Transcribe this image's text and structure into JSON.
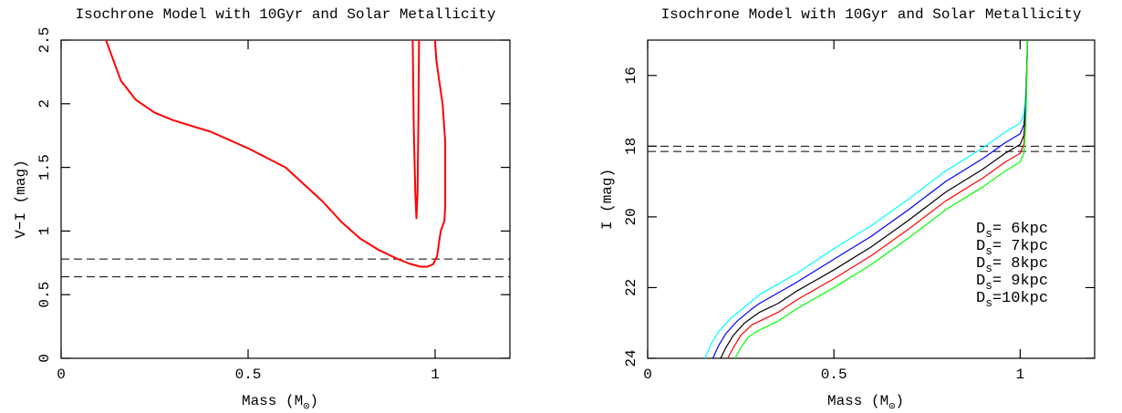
{
  "chart_data": [
    {
      "type": "line",
      "title": "Isochrone Model with 10Gyr and Solar Metallicity",
      "x_label": "Mass (M⊙)",
      "y_label": "V−I (mag)",
      "xlim": [
        0,
        1.2
      ],
      "xticks": [
        0,
        0.5,
        1
      ],
      "ylim": [
        0,
        2.5
      ],
      "yticks": [
        0,
        0.5,
        1,
        1.5,
        2,
        2.5
      ],
      "hlines": [
        0.78,
        0.64
      ],
      "hline_style": "dashed",
      "series": [
        {
          "color": "#ff0000",
          "x": [
            0.12,
            0.145,
            0.16,
            0.2,
            0.25,
            0.3,
            0.4,
            0.5,
            0.6,
            0.7,
            0.75,
            0.8,
            0.85,
            0.9,
            0.93,
            0.96,
            0.98,
            0.995,
            1.005,
            1.015,
            1.025,
            1.027,
            1.027,
            1.02,
            1.01,
            1.003,
            1.0,
            null,
            0.94,
            0.943,
            0.947,
            0.95,
            0.953,
            0.955,
            0.957
          ],
          "values": [
            2.5,
            2.3,
            2.18,
            2.03,
            1.93,
            1.87,
            1.78,
            1.65,
            1.5,
            1.23,
            1.07,
            0.94,
            0.85,
            0.78,
            0.745,
            0.72,
            0.72,
            0.74,
            0.8,
            1.0,
            1.08,
            1.2,
            1.7,
            2.0,
            2.2,
            2.35,
            2.5,
            null,
            2.5,
            1.8,
            1.3,
            1.1,
            1.3,
            1.8,
            2.5
          ]
        }
      ]
    },
    {
      "type": "line",
      "title": "Isochrone Model with 10Gyr and Solar Metallicity",
      "x_label": "Mass (M⊙)",
      "y_label": "I (mag)",
      "xlim": [
        0,
        1.2
      ],
      "xticks": [
        0,
        0.5,
        1
      ],
      "ylim": [
        24,
        15
      ],
      "yticks": [
        16,
        18,
        20,
        22,
        24
      ],
      "hlines": [
        18.0,
        18.15
      ],
      "hline_style": "dashed",
      "legend": "right",
      "series": [
        {
          "name": "Ds= 6kpc",
          "color": "#00ffff",
          "x": [
            0.154,
            0.17,
            0.19,
            0.22,
            0.26,
            0.3,
            0.35,
            0.4,
            0.5,
            0.6,
            0.7,
            0.8,
            0.9,
            0.96,
            1.0,
            1.01,
            1.015,
            1.02
          ],
          "values": [
            24,
            23.6,
            23.25,
            22.9,
            22.55,
            22.2,
            21.9,
            21.6,
            20.9,
            20.25,
            19.5,
            18.7,
            18.05,
            17.6,
            17.35,
            17.1,
            16.5,
            15.0
          ]
        },
        {
          "name": "Ds= 7kpc",
          "color": "#0000ff",
          "x": [
            0.175,
            0.19,
            0.21,
            0.24,
            0.28,
            0.3,
            0.35,
            0.4,
            0.5,
            0.6,
            0.7,
            0.8,
            0.9,
            0.96,
            1.0,
            1.01,
            1.015,
            1.02
          ],
          "values": [
            24,
            23.65,
            23.3,
            22.95,
            22.6,
            22.45,
            22.15,
            21.85,
            21.2,
            20.55,
            19.8,
            19.0,
            18.35,
            17.9,
            17.65,
            17.4,
            16.8,
            15.0
          ]
        },
        {
          "name": "Ds= 8kpc",
          "color": "#000000",
          "x": [
            0.196,
            0.21,
            0.23,
            0.26,
            0.3,
            0.35,
            0.4,
            0.5,
            0.6,
            0.7,
            0.8,
            0.9,
            0.96,
            1.0,
            1.01,
            1.015,
            1.02
          ],
          "values": [
            24,
            23.7,
            23.35,
            23.0,
            22.7,
            22.45,
            22.1,
            21.5,
            20.85,
            20.1,
            19.3,
            18.65,
            18.2,
            17.95,
            17.7,
            17.0,
            15.0
          ]
        },
        {
          "name": "Ds= 9kpc",
          "color": "#ff0000",
          "x": [
            0.215,
            0.23,
            0.25,
            0.28,
            0.3,
            0.35,
            0.4,
            0.5,
            0.6,
            0.7,
            0.8,
            0.9,
            0.96,
            1.0,
            1.01,
            1.015,
            1.02
          ],
          "values": [
            24,
            23.7,
            23.35,
            23.05,
            22.95,
            22.7,
            22.35,
            21.75,
            21.1,
            20.35,
            19.55,
            18.9,
            18.45,
            18.2,
            17.95,
            17.2,
            15.0
          ]
        },
        {
          "name": "Ds=10kpc",
          "color": "#00ff00",
          "x": [
            0.235,
            0.25,
            0.27,
            0.3,
            0.35,
            0.4,
            0.5,
            0.6,
            0.7,
            0.8,
            0.9,
            0.96,
            1.0,
            1.01,
            1.015,
            1.02
          ],
          "values": [
            24,
            23.7,
            23.4,
            23.2,
            22.95,
            22.6,
            22.0,
            21.35,
            20.6,
            19.8,
            19.15,
            18.7,
            18.45,
            18.2,
            17.4,
            15.0
          ]
        }
      ]
    }
  ]
}
